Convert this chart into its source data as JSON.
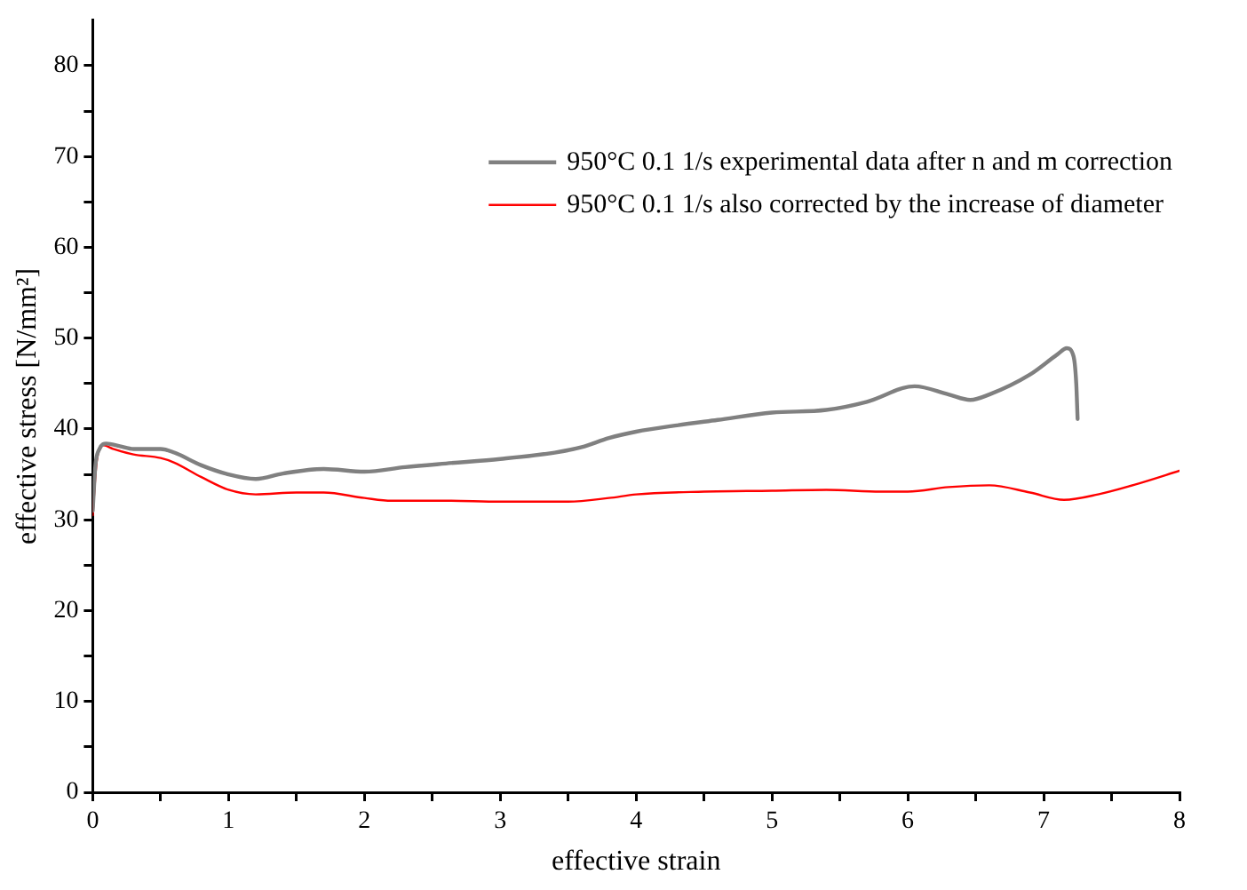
{
  "chart_data": {
    "type": "line",
    "xlabel": "effective strain",
    "ylabel": "effective stress [N/mm²]",
    "xlim": [
      0,
      8
    ],
    "ylim": [
      0,
      85
    ],
    "xticks": [
      0,
      {
        "value": 0.5,
        "label": null
      },
      1,
      {
        "value": 1.5,
        "label": null
      },
      2,
      {
        "value": 2.5,
        "label": null
      },
      3,
      {
        "value": 3.5,
        "label": null
      },
      4,
      {
        "value": 4.5,
        "label": null
      },
      5,
      {
        "value": 5.5,
        "label": null
      },
      6,
      {
        "value": 6.5,
        "label": null
      },
      7,
      {
        "value": 7.5,
        "label": null
      },
      8
    ],
    "yticks": [
      0,
      {
        "value": 5,
        "label": null
      },
      10,
      {
        "value": 15,
        "label": null
      },
      20,
      {
        "value": 25,
        "label": null
      },
      30,
      {
        "value": 35,
        "label": null
      },
      40,
      {
        "value": 45,
        "label": null
      },
      50,
      {
        "value": 55,
        "label": null
      },
      60,
      {
        "value": 65,
        "label": null
      },
      70,
      {
        "value": 75,
        "label": null
      },
      80
    ],
    "grid": false,
    "legend": "top right",
    "marker": "none",
    "line_style": "solid",
    "series": [
      {
        "name": "950°C 0.1 1/s experimental data after n and m correction",
        "color": "#808080",
        "x": [
          0,
          0.02,
          0.05,
          0.1,
          0.2,
          0.3,
          0.5,
          0.6,
          0.8,
          1.0,
          1.2,
          1.4,
          1.7,
          2.0,
          2.3,
          2.6,
          3.0,
          3.4,
          3.6,
          3.8,
          4.0,
          4.3,
          4.6,
          5.0,
          5.4,
          5.7,
          6.05,
          6.3,
          6.46,
          6.6,
          6.9,
          7.1,
          7.17,
          7.22,
          7.24,
          7.25
        ],
        "values": [
          31,
          36,
          37.8,
          38.4,
          38.1,
          37.8,
          37.8,
          37.4,
          36,
          35,
          34.5,
          35.1,
          35.6,
          35.3,
          35.8,
          36.2,
          36.7,
          37.4,
          38,
          39,
          39.7,
          40.4,
          41,
          41.8,
          42.1,
          43,
          44.7,
          43.8,
          43.2,
          43.8,
          46,
          48.2,
          48.9,
          48,
          45,
          41.1
        ]
      },
      {
        "name": "950°C 0.1 1/s also corrected by the increase of diameter",
        "color": "#ff0000",
        "x": [
          0,
          0.03,
          0.08,
          0.15,
          0.3,
          0.5,
          0.6,
          0.8,
          1.0,
          1.2,
          1.5,
          1.7,
          2.0,
          2.2,
          2.6,
          3.0,
          3.5,
          3.8,
          4.0,
          4.5,
          5.0,
          5.4,
          5.8,
          6.0,
          6.3,
          6.6,
          6.9,
          7.15,
          7.4,
          7.7,
          8.0
        ],
        "values": [
          30.5,
          36.5,
          38.2,
          37.8,
          37.2,
          36.8,
          36.3,
          34.7,
          33.3,
          32.8,
          33,
          33,
          32.4,
          32.1,
          32.1,
          32,
          32,
          32.4,
          32.8,
          33.1,
          33.2,
          33.3,
          33.1,
          33.1,
          33.6,
          33.8,
          33,
          32.2,
          32.8,
          34,
          35.4
        ]
      }
    ]
  }
}
